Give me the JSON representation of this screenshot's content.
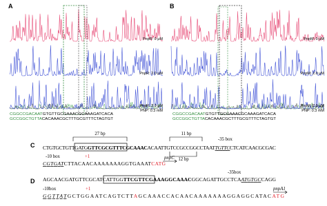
{
  "panels": [
    {
      "label": "A",
      "traces": [
        [
          "PnpR: 0 μM"
        ],
        [
          "PnpR: 2.0 μM"
        ],
        [
          "PnpR: 2.0 μM",
          "PNP: 0.3 mM"
        ]
      ],
      "sequence": [
        [
          "CGGCCGACAAT",
          "GTGTTGCGAAACGCAAAGATCACA"
        ],
        [
          "GCCGGCTGTTA",
          "CACAAACGCTTTGCGTTTCTAGTGT"
        ]
      ]
    },
    {
      "label": "B",
      "traces": [
        [
          "PnpM: 0 μM"
        ],
        [
          "PnpM: 2.0 μM"
        ],
        [
          "PnpM: 2.0 μM",
          "PNP: 0.3 mM"
        ]
      ],
      "sequence": [
        [
          "CGGCCGACAAT",
          "GTGTTGCGAAACGCAAAGATCACA"
        ],
        [
          "GCCGGCTGTTA",
          "CACAAACGCTTTGCGTTTCTAGTGT"
        ]
      ]
    }
  ],
  "promoters": [
    {
      "label": "C",
      "annotations": [
        "27 bp",
        "11 bp",
        "-35 box",
        "12 bp",
        "-10 box",
        "+1",
        "pnpC"
      ],
      "lines": [
        [
          "CTGTGCTGTTGATG",
          "GTTCGCGTTTCGCAAAC",
          "ACAATTGTCCGCCGGCCTAAT",
          "TGTTC",
          "CTCATCAACGCGAC"
        ],
        [
          "",
          "CGTGAT",
          "CTTACAACAAAAAAAGGTGAAAT",
          "C",
          "",
          "ATG"
        ]
      ]
    },
    {
      "label": "D",
      "annotations": [
        "-35box",
        "-10box",
        "+1",
        "pnpA1"
      ],
      "lines": [
        [
          "AGCAACGATGTTCGCATCATTGG",
          "TTCGTTCGAAAGGCAAAC",
          "GGCAGATTGCCTCA",
          "ATGTGC",
          "CAGG"
        ],
        [
          "GGTTAT",
          "GCTGGAATCAGTCTT",
          "A",
          "GCAAACCACAACAAAAAAAGGAGGCATAC",
          "ATG"
        ]
      ]
    }
  ]
}
